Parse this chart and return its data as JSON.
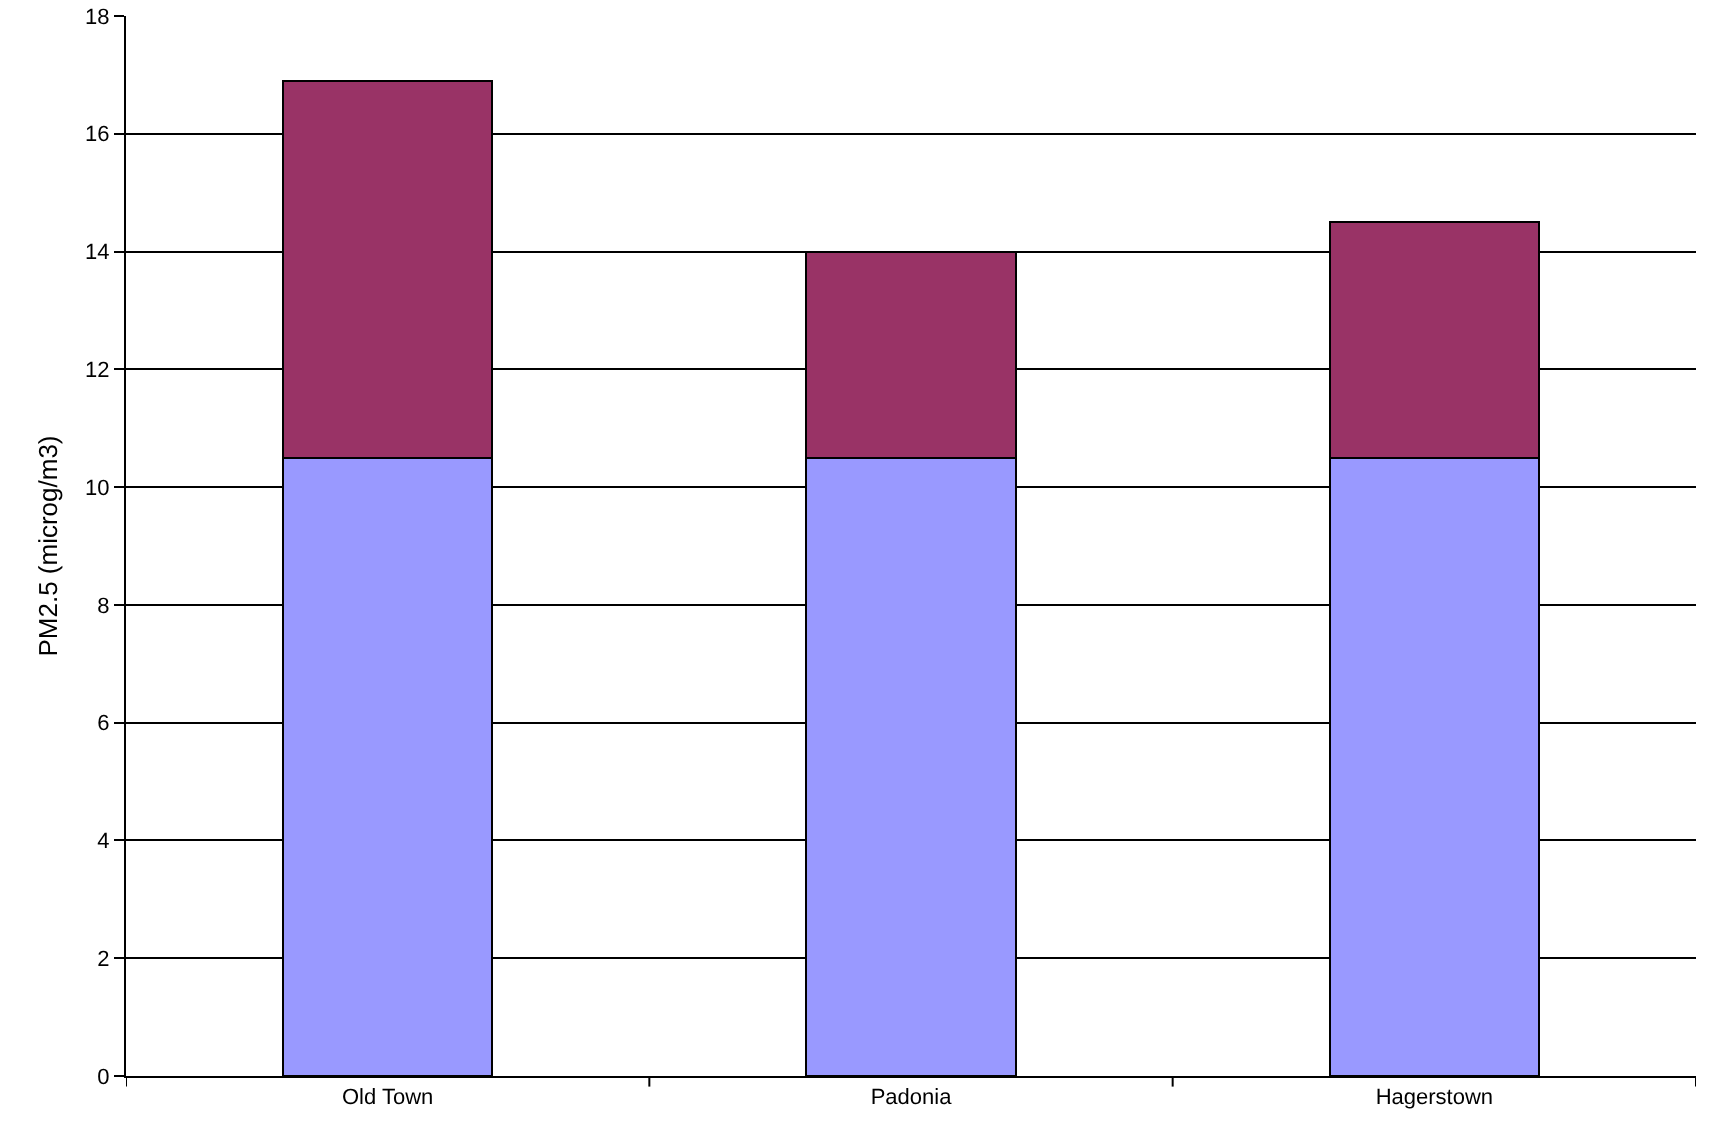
{
  "chart_data": {
    "type": "bar",
    "ylabel": "PM2.5 (microg/m3)",
    "categories": [
      "Old Town",
      "Padonia",
      "Hagerstown"
    ],
    "stacked": true,
    "series": [
      {
        "color": "#9999ff",
        "values": [
          10.5,
          10.5,
          10.5
        ]
      },
      {
        "color": "#993366",
        "values": [
          6.4,
          3.5,
          4.0
        ]
      }
    ],
    "ylim": [
      0,
      18
    ],
    "yticks": [
      0,
      2,
      4,
      6,
      8,
      10,
      12,
      14,
      16,
      18
    ],
    "grid": "y",
    "legend": false
  }
}
